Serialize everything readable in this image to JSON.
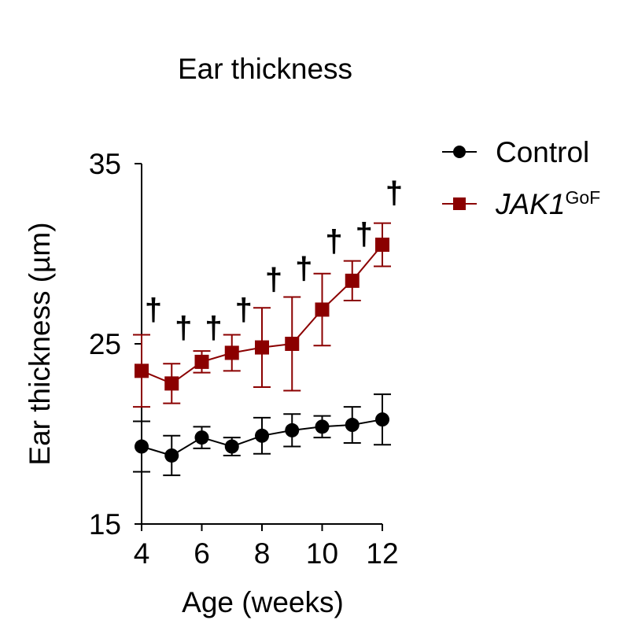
{
  "chart_data": {
    "type": "line",
    "title": "Ear thickness",
    "xlabel": "Age (weeks)",
    "ylabel": "Ear thickness (µm)",
    "xlim": [
      4,
      12
    ],
    "ylim": [
      15,
      35
    ],
    "xticks": [
      "4",
      "6",
      "8",
      "10",
      "12"
    ],
    "yticks": [
      "15",
      "25",
      "35"
    ],
    "x": [
      4,
      5,
      6,
      7,
      8,
      9,
      10,
      11,
      12
    ],
    "legend_position": "top-right",
    "significance_marker": "†",
    "series": [
      {
        "name": "Control",
        "marker": "circle",
        "color": "#000000",
        "values": [
          19.3,
          18.8,
          19.8,
          19.3,
          19.9,
          20.2,
          20.4,
          20.5,
          20.8
        ],
        "errors": [
          1.4,
          1.1,
          0.6,
          0.5,
          1.0,
          0.9,
          0.6,
          1.0,
          1.4
        ]
      },
      {
        "name": "JAK1",
        "name_superscript": "GoF",
        "marker": "square",
        "color": "#8b0000",
        "values": [
          23.5,
          22.8,
          24.0,
          24.5,
          24.8,
          25.0,
          26.9,
          28.5,
          30.5
        ],
        "errors": [
          2.0,
          1.1,
          0.6,
          1.0,
          2.2,
          2.6,
          2.0,
          1.1,
          1.2
        ]
      }
    ],
    "significance": [
      {
        "x": 4,
        "y": 26.3
      },
      {
        "x": 5,
        "y": 25.3
      },
      {
        "x": 6,
        "y": 25.3
      },
      {
        "x": 7,
        "y": 26.3
      },
      {
        "x": 8,
        "y": 28.0
      },
      {
        "x": 9,
        "y": 28.6
      },
      {
        "x": 10,
        "y": 30.1
      },
      {
        "x": 11,
        "y": 30.5
      },
      {
        "x": 12,
        "y": 32.8
      }
    ]
  }
}
